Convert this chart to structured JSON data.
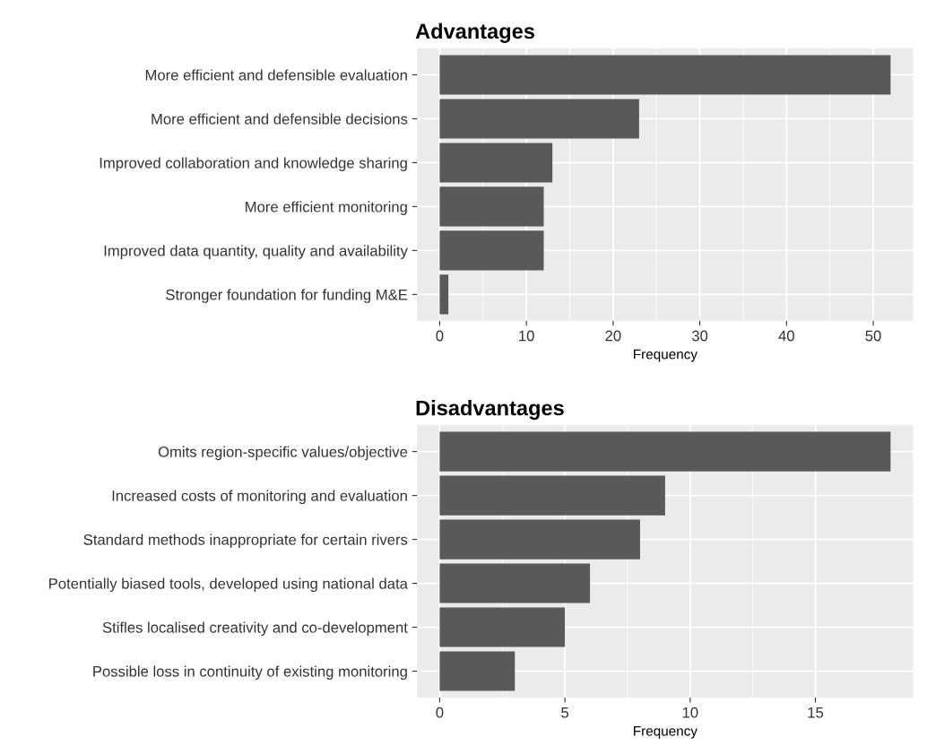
{
  "chart_data": [
    {
      "type": "bar",
      "orientation": "horizontal",
      "title": "Advantages",
      "xlabel": "Frequency",
      "categories": [
        "More efficient and defensible evaluation",
        "More efficient and defensible decisions",
        "Improved collaboration and knowledge sharing",
        "More efficient monitoring",
        "Improved data quantity, quality and availability",
        "Stronger foundation for funding M&E"
      ],
      "values": [
        52,
        23,
        13,
        12,
        12,
        1
      ],
      "color": "#595959",
      "xlim": [
        -2.6,
        54.6
      ],
      "xticks": [
        0,
        10,
        20,
        30,
        40,
        50
      ],
      "grid": true
    },
    {
      "type": "bar",
      "orientation": "horizontal",
      "title": "Disadvantages",
      "xlabel": "Frequency",
      "categories": [
        "Omits region-specific values/objective",
        "Increased costs of monitoring and evaluation",
        "Standard methods inappropriate for certain rivers",
        "Potentially biased tools, developed using national data",
        "Stifles localised creativity and co-development",
        "Possible loss in continuity of existing monitoring"
      ],
      "values": [
        18,
        9,
        8,
        6,
        5,
        3
      ],
      "color": "#595959",
      "xlim": [
        -0.9,
        18.9
      ],
      "xticks": [
        0,
        5,
        10,
        15
      ],
      "grid": true
    }
  ]
}
